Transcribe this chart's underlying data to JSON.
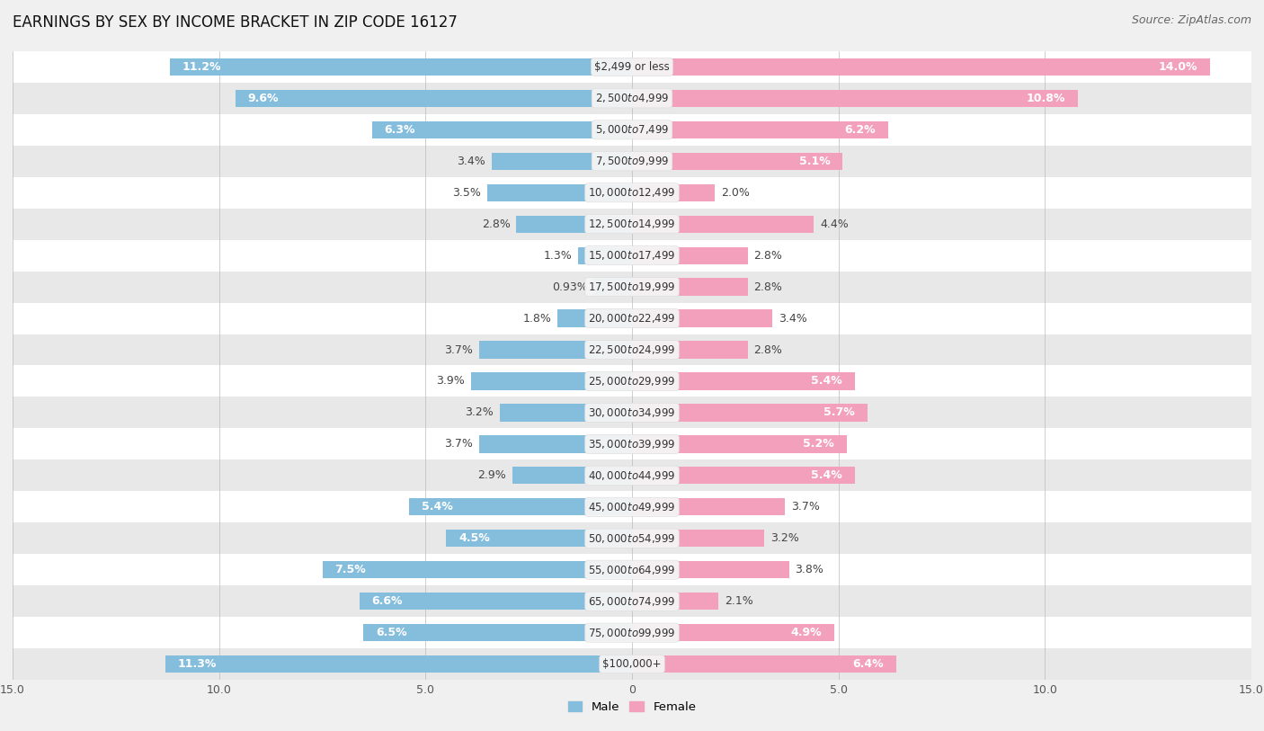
{
  "title": "EARNINGS BY SEX BY INCOME BRACKET IN ZIP CODE 16127",
  "source": "Source: ZipAtlas.com",
  "categories": [
    "$2,499 or less",
    "$2,500 to $4,999",
    "$5,000 to $7,499",
    "$7,500 to $9,999",
    "$10,000 to $12,499",
    "$12,500 to $14,999",
    "$15,000 to $17,499",
    "$17,500 to $19,999",
    "$20,000 to $22,499",
    "$22,500 to $24,999",
    "$25,000 to $29,999",
    "$30,000 to $34,999",
    "$35,000 to $39,999",
    "$40,000 to $44,999",
    "$45,000 to $49,999",
    "$50,000 to $54,999",
    "$55,000 to $64,999",
    "$65,000 to $74,999",
    "$75,000 to $99,999",
    "$100,000+"
  ],
  "male_values": [
    11.2,
    9.6,
    6.3,
    3.4,
    3.5,
    2.8,
    1.3,
    0.93,
    1.8,
    3.7,
    3.9,
    3.2,
    3.7,
    2.9,
    5.4,
    4.5,
    7.5,
    6.6,
    6.5,
    11.3
  ],
  "female_values": [
    14.0,
    10.8,
    6.2,
    5.1,
    2.0,
    4.4,
    2.8,
    2.8,
    3.4,
    2.8,
    5.4,
    5.7,
    5.2,
    5.4,
    3.7,
    3.2,
    3.8,
    2.1,
    4.9,
    6.4
  ],
  "male_color": "#85BEDD",
  "female_color": "#F2A0BC",
  "bar_height": 0.55,
  "xlim": 15.0,
  "background_color": "#f0f0f0",
  "row_colors": [
    "#ffffff",
    "#e8e8e8"
  ],
  "title_fontsize": 12,
  "source_fontsize": 9,
  "label_fontsize": 9,
  "cat_fontsize": 8.5,
  "inside_label_threshold": 4.5,
  "inside_label_color": "white",
  "outside_label_color": "#444444",
  "cat_label_color": "#333333",
  "pill_color": "#f5f5f5",
  "pill_edge_color": "#dddddd"
}
